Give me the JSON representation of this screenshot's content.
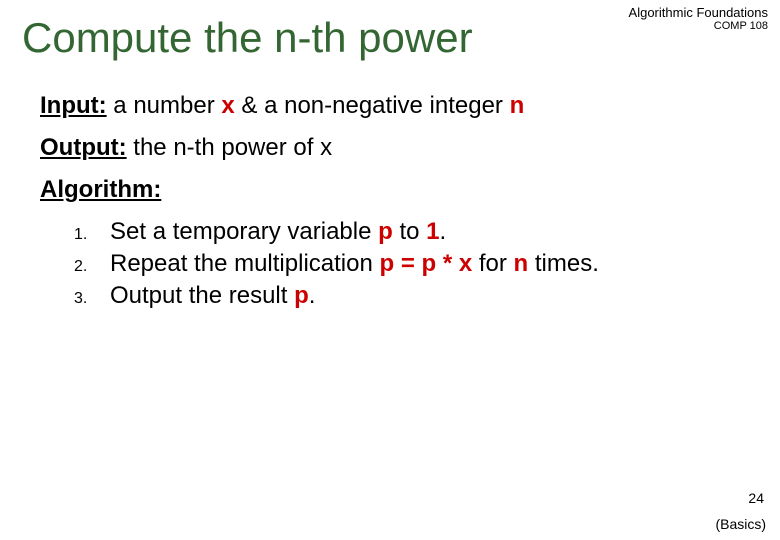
{
  "header": {
    "line1": "Algorithmic Foundations",
    "line2": "COMP 108"
  },
  "title": "Compute the n-th power",
  "input": {
    "label": "Input:",
    "pre": " a number ",
    "var1": "x",
    "mid": " & a non-negative integer ",
    "var2": "n"
  },
  "output": {
    "label": "Output:",
    "text": " the n-th power of x"
  },
  "algorithm_label": "Algorithm:",
  "steps": [
    {
      "num": "1.",
      "a": "Set a temporary variable ",
      "b": "p",
      "c": " to ",
      "d": "1",
      "e": "."
    },
    {
      "num": "2.",
      "a": "Repeat the multiplication ",
      "b": "p = p * x",
      "c": " for ",
      "d": "n",
      "e": " times."
    },
    {
      "num": "3.",
      "a": "Output the result ",
      "b": "p",
      "c": ".",
      "d": "",
      "e": ""
    }
  ],
  "page_number": "24",
  "footer": "(Basics)",
  "colors": {
    "title_color": "#336633",
    "accent_red": "#cc0000",
    "text_color": "#000000",
    "background": "#ffffff"
  },
  "typography": {
    "title_fontsize": 42,
    "body_fontsize": 24,
    "list_num_fontsize": 16,
    "header_fontsize": 13,
    "footer_fontsize": 14,
    "font_family": "Comic Sans MS"
  }
}
